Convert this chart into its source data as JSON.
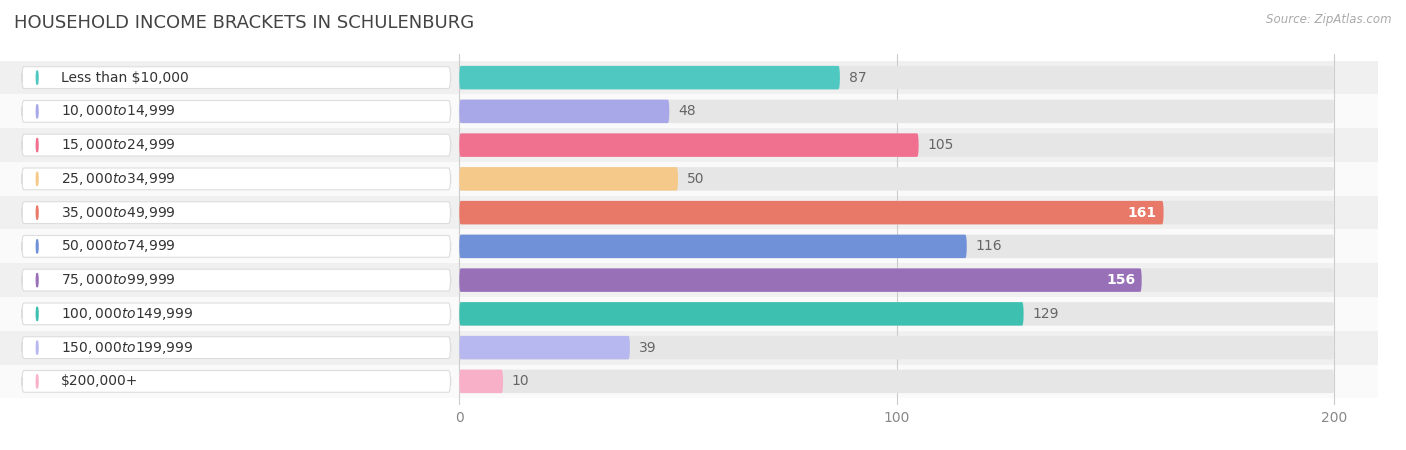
{
  "title": "HOUSEHOLD INCOME BRACKETS IN SCHULENBURG",
  "source": "Source: ZipAtlas.com",
  "categories": [
    "Less than $10,000",
    "$10,000 to $14,999",
    "$15,000 to $24,999",
    "$25,000 to $34,999",
    "$35,000 to $49,999",
    "$50,000 to $74,999",
    "$75,000 to $99,999",
    "$100,000 to $149,999",
    "$150,000 to $199,999",
    "$200,000+"
  ],
  "values": [
    87,
    48,
    105,
    50,
    161,
    116,
    156,
    129,
    39,
    10
  ],
  "bar_colors": [
    "#4ec8c0",
    "#a8a8e8",
    "#f07090",
    "#f5c98a",
    "#e87868",
    "#7090d8",
    "#9870b8",
    "#3ec0b0",
    "#b8b8f0",
    "#f8b0c8"
  ],
  "xlim": [
    0,
    200
  ],
  "xticks": [
    0,
    100,
    200
  ],
  "bar_height": 0.68,
  "label_fontsize": 10.5,
  "title_fontsize": 13,
  "value_label_inside_color": "#ffffff",
  "value_label_outside_color": "#666666",
  "value_threshold": 150,
  "background_color": "#f7f7f7",
  "bar_bg_color": "#e6e6e6",
  "row_bg_even": "#f0f0f0",
  "row_bg_odd": "#fafafa"
}
